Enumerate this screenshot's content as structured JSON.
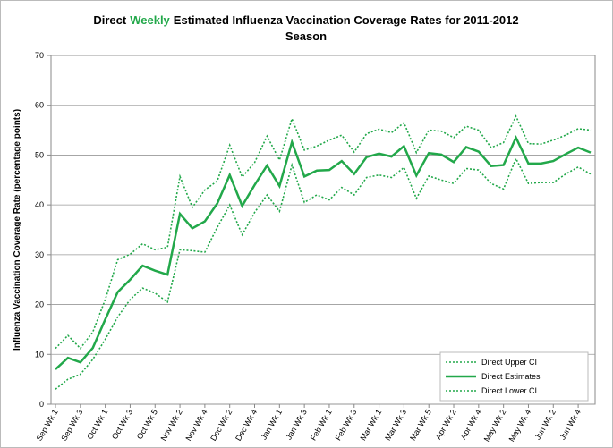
{
  "chart_data": {
    "type": "line",
    "title": {
      "prefix": "Direct",
      "highlight": "Weekly",
      "rest": "Estimated Influenza Vaccination Coverage Rates for 2011-2012",
      "line2": "Season"
    },
    "title_highlight_color": "#22a84a",
    "y_label": "Influenza  Vaccination Coverage Rate (percentage points)",
    "categories": [
      "Sep Wk 1",
      null,
      "Sep Wk 3",
      null,
      "Oct Wk 1",
      null,
      "Oct Wk 3",
      null,
      "Oct Wk 5",
      null,
      "Nov Wk 2",
      null,
      "Nov Wk 4",
      null,
      "Dec Wk 2",
      null,
      "Dec Wk 4",
      null,
      "Jan Wk 1",
      null,
      "Jan Wk 3",
      null,
      "Feb Wk 1",
      null,
      "Feb Wk 3",
      null,
      "Mar Wk 1",
      null,
      "Mar Wk 3",
      null,
      "Mar Wk 5",
      null,
      "Apr Wk 2",
      null,
      "Apr Wk 4",
      null,
      "May Wk 2",
      null,
      "May Wk 4",
      null,
      "Jun Wk 2",
      null,
      "Jun Wk 4",
      null
    ],
    "series": [
      {
        "name": "Direct Upper CI",
        "color": "#22a84a",
        "dash": "dotted",
        "values": [
          11.2,
          13.8,
          11.2,
          14.5,
          21,
          29,
          30.1,
          32.2,
          31,
          31.5,
          45.7,
          39.5,
          43,
          44.8,
          52,
          45.6,
          48.5,
          53.8,
          49,
          57.3,
          51,
          51.8,
          53,
          54,
          50.6,
          54.3,
          55.2,
          54.5,
          56.5,
          50.5,
          55,
          54.8,
          53.5,
          55.8,
          55,
          51.5,
          52.5,
          57.8,
          52.3,
          52.2,
          53,
          54,
          55.3,
          55
        ]
      },
      {
        "name": "Direct Estimates",
        "color": "#22a84a",
        "dash": "solid",
        "values": [
          7,
          9.3,
          8.4,
          11.3,
          17,
          22.5,
          25,
          27.8,
          26.8,
          26,
          38.2,
          35.3,
          36.7,
          40.3,
          46,
          39.8,
          44,
          47.9,
          43.8,
          52.6,
          45.7,
          46.9,
          47,
          48.8,
          46.2,
          49.6,
          50.3,
          49.7,
          51.8,
          45.9,
          50.4,
          50.1,
          48.6,
          51.6,
          50.7,
          47.8,
          48,
          53.5,
          48.3,
          48.3,
          48.8,
          50.2,
          51.5,
          50.5
        ]
      },
      {
        "name": "Direct Lower CI",
        "color": "#22a84a",
        "dash": "dotted",
        "values": [
          3,
          5,
          6,
          9,
          13,
          17.5,
          21,
          23.3,
          22.3,
          20.5,
          31,
          30.8,
          30.5,
          35.5,
          40,
          34,
          38.5,
          42,
          38.7,
          48,
          40.5,
          42,
          41,
          43.5,
          42,
          45.5,
          46,
          45.5,
          47.5,
          41.3,
          45.8,
          45,
          44.3,
          47.3,
          47,
          44.3,
          43.2,
          49.3,
          44.3,
          44.5,
          44.5,
          46.2,
          47.6,
          46.2
        ]
      }
    ],
    "ylim": [
      0,
      70
    ],
    "yticks": [
      0,
      10,
      20,
      30,
      40,
      50,
      60,
      70
    ],
    "grid": true,
    "legend": "bottom-right"
  }
}
